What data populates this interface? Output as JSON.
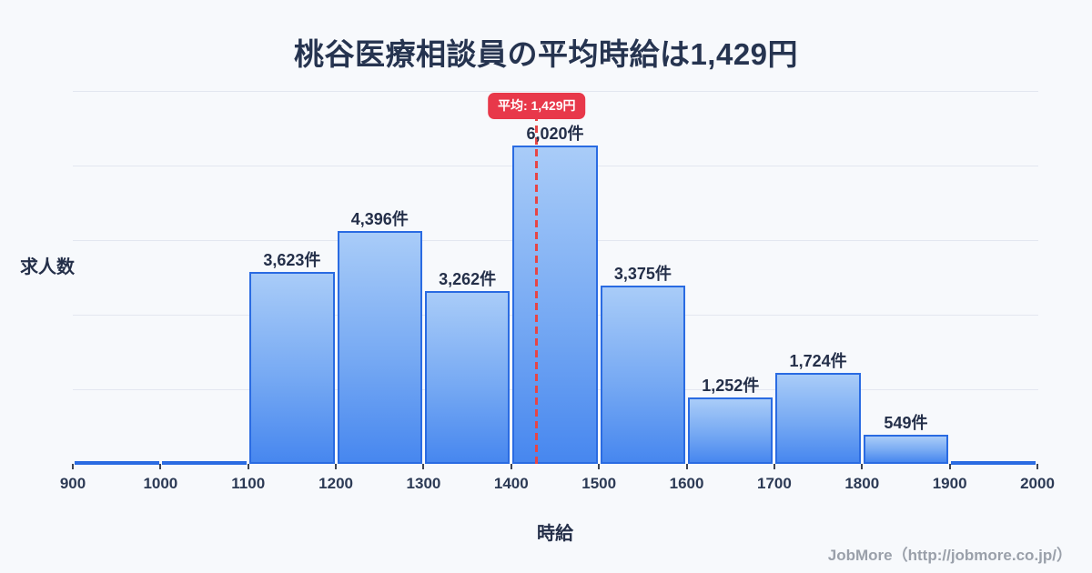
{
  "page": {
    "background_color": "#f7f9fc"
  },
  "header": {
    "title": "桃谷医療相談員の平均時給は1,429円"
  },
  "chart_data": {
    "type": "bar",
    "subtype": "histogram",
    "title": "桃谷医療相談員の平均時給は1,429円",
    "xlabel": "時給",
    "ylabel": "求人数",
    "bin_edges": [
      900,
      1000,
      1100,
      1200,
      1300,
      1400,
      1500,
      1600,
      1700,
      1800,
      1900,
      2000
    ],
    "x_tick_labels": [
      "900",
      "1000",
      "1100",
      "1200",
      "1300",
      "1400",
      "1500",
      "1600",
      "1700",
      "1800",
      "1900",
      "2000"
    ],
    "counts": [
      60,
      60,
      3623,
      4396,
      3262,
      6020,
      3375,
      1252,
      1724,
      549,
      60
    ],
    "bar_labels": [
      "",
      "",
      "3,623件",
      "4,396件",
      "3,262件",
      "6,020件",
      "3,375件",
      "1,252件",
      "1,724件",
      "549件",
      ""
    ],
    "ylim": [
      0,
      7050
    ],
    "grid": "horizontal",
    "gridline_count": 5,
    "legend": "none",
    "mean_line": {
      "value": 1429,
      "label": "平均: 1,429円"
    },
    "colors": {
      "bar_fill_top": "#a9ccf8",
      "bar_fill_bottom": "#4787ef",
      "bar_border": "#2a6be2",
      "mean_line": "#e64545",
      "mean_badge_bg": "#e8384a",
      "mean_badge_text": "#ffffff",
      "gridline": "#e3e7f0",
      "text_dark": "#242f49"
    }
  },
  "footer": {
    "credit": "JobMore（http://jobmore.co.jp/）"
  }
}
